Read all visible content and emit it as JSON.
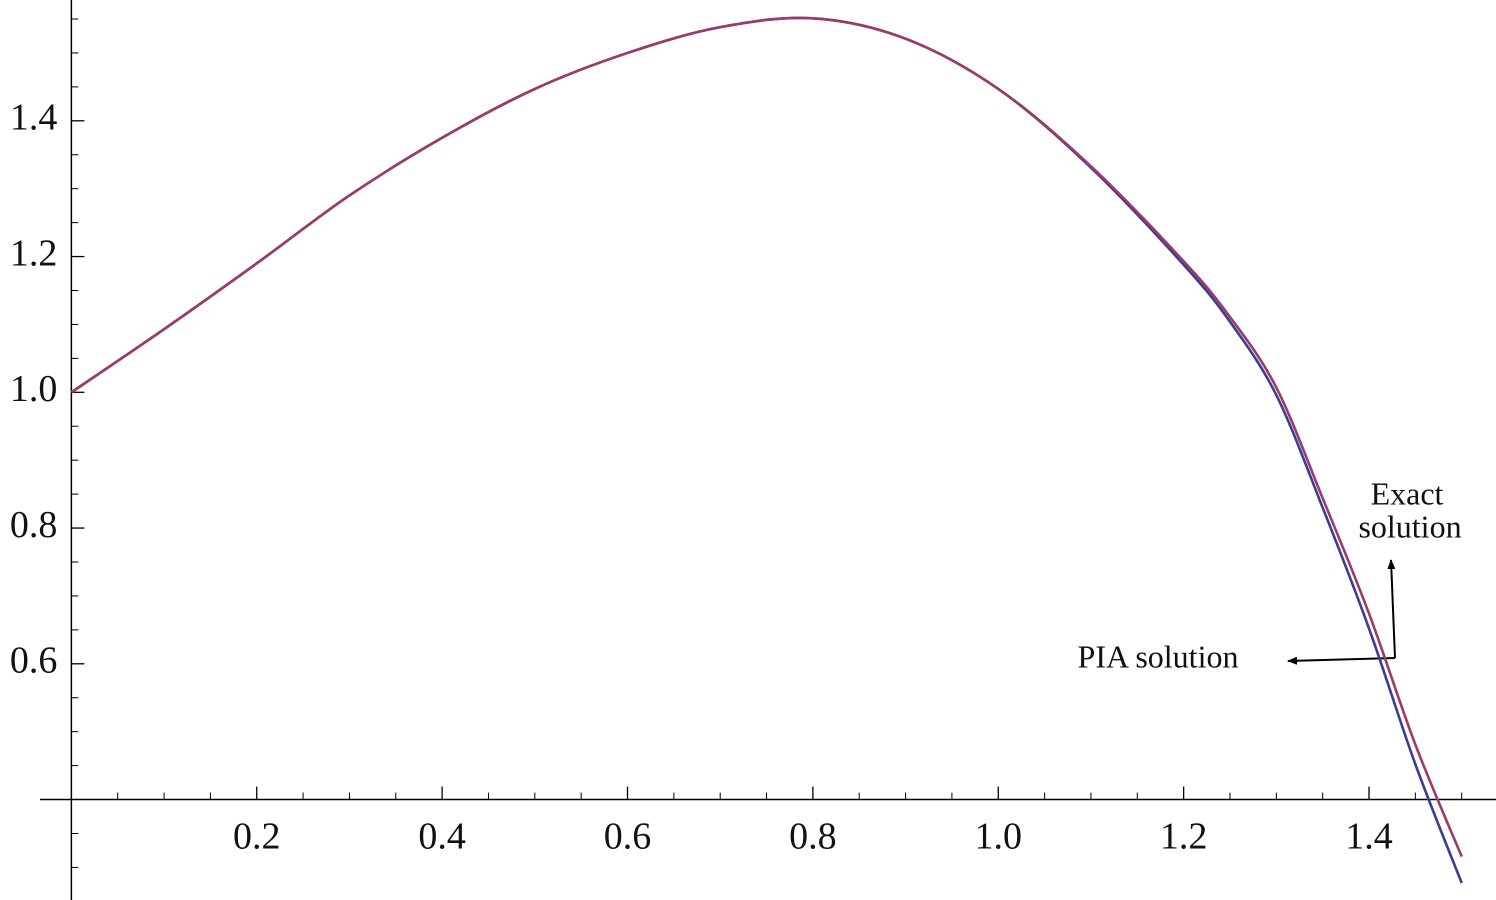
{
  "chart_data": {
    "type": "line",
    "x": [
      0,
      0.1,
      0.2,
      0.3,
      0.4,
      0.5,
      0.6,
      0.7,
      0.8,
      0.9,
      1.0,
      1.1,
      1.2,
      1.25,
      1.3,
      1.35,
      1.4,
      1.45,
      1.5
    ],
    "series": [
      {
        "name": "Exact solution",
        "color": "#9b3a6b",
        "values": [
          1.0,
          1.093,
          1.19,
          1.29,
          1.375,
          1.447,
          1.5,
          1.538,
          1.551,
          1.521,
          1.447,
          1.333,
          1.193,
          1.111,
          1.007,
          0.844,
          0.674,
          0.481,
          0.316
        ]
      },
      {
        "name": "PIA solution",
        "color": "#3b3d8e",
        "values": [
          1.0,
          1.093,
          1.19,
          1.29,
          1.375,
          1.447,
          1.5,
          1.538,
          1.551,
          1.521,
          1.447,
          1.331,
          1.188,
          1.104,
          0.996,
          0.83,
          0.652,
          0.452,
          0.277
        ]
      }
    ],
    "annotations": [
      {
        "lines": [
          "Exact",
          "solution"
        ]
      },
      {
        "lines": [
          "PIA solution"
        ]
      }
    ],
    "xlim": [
      -0.077,
      1.537
    ],
    "ylim": [
      0.252,
      1.578
    ],
    "origin": [
      0,
      0.4
    ],
    "xticks": [
      0.2,
      0.4,
      0.6,
      0.8,
      {
        "value": 1,
        "label": "1.0"
      },
      1.2,
      1.4
    ],
    "yticks": [
      0.6,
      0.8,
      {
        "value": 1,
        "label": "1.0"
      },
      1.2,
      1.4
    ],
    "xminorticks": [
      0.05,
      0.1,
      0.15,
      0.25,
      0.3,
      0.35,
      0.45,
      0.5,
      0.55,
      0.65,
      0.7,
      0.75,
      0.85,
      0.9,
      0.95,
      1.05,
      1.1,
      1.15,
      1.25,
      1.3,
      1.35,
      1.45,
      1.5
    ],
    "yminorticks": [
      0.3,
      0.35,
      0.45,
      0.5,
      0.55,
      0.65,
      0.7,
      0.75,
      0.85,
      0.9,
      0.95,
      1.05,
      1.1,
      1.15,
      1.25,
      1.3,
      1.35,
      1.45,
      1.5,
      1.55
    ],
    "grid": false
  }
}
